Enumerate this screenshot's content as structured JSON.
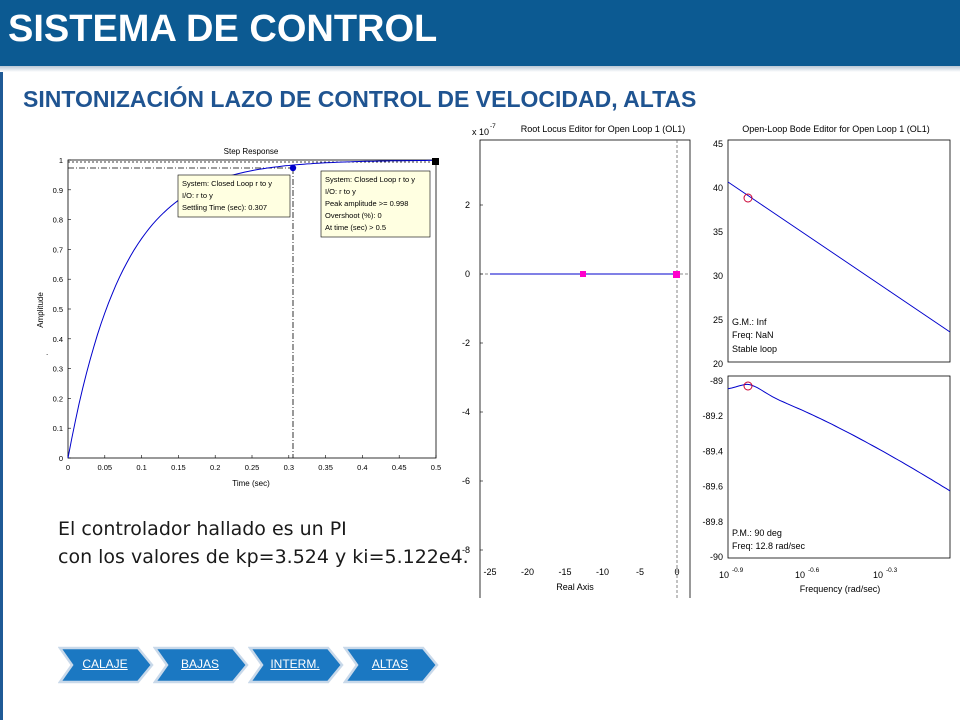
{
  "header": {
    "title": "SISTEMA DE CONTROL"
  },
  "subtitle": "SINTONIZACIÓN LAZO DE CONTROL DE VELOCIDAD, ALTAS",
  "step_plot": {
    "title": "Step Response",
    "xlabel": "Time (sec)",
    "ylabel": "Amplitude",
    "xticks": [
      "0",
      "0.05",
      "0.1",
      "0.15",
      "0.2",
      "0.25",
      "0.3",
      "0.35",
      "0.4",
      "0.45",
      "0.5"
    ],
    "yticks": [
      "0",
      "0.1",
      "0.2",
      "0.3",
      "0.4",
      "0.5",
      "0.6",
      "0.7",
      "0.8",
      "0.9",
      "1"
    ],
    "dot_mark": ".",
    "tip1": [
      "System: Closed Loop r to y",
      "I/O: r to y",
      "Settling Time (sec): 0.307"
    ],
    "tip2": [
      "System: Closed Loop r to y",
      "I/O: r to y",
      "Peak amplitude >= 0.998",
      "Overshoot (%): 0",
      "At time (sec) > 0.5"
    ]
  },
  "root_locus": {
    "title": "Root Locus Editor for Open Loop 1 (OL1)",
    "scale": "x 10",
    "scale_exp": "-7",
    "xlabel": "Real Axis",
    "xticks": [
      "-25",
      "-20",
      "-15",
      "-10",
      "-5",
      "0"
    ],
    "yticks": [
      "2",
      "0",
      "-2",
      "-4",
      "-6",
      "-8"
    ]
  },
  "bode": {
    "title": "Open-Loop Bode Editor for Open Loop 1 (OL1)",
    "mag_yticks": [
      "45",
      "40",
      "35",
      "30",
      "25",
      "20"
    ],
    "phase_yticks": [
      "-89",
      "-89.2",
      "-89.4",
      "-89.6",
      "-89.8",
      "-90"
    ],
    "mag_info": [
      "G.M.: Inf",
      "Freq: NaN",
      "Stable loop"
    ],
    "phase_info": [
      "P.M.: 90 deg",
      "Freq: 12.8 rad/sec"
    ],
    "xticks": [
      {
        "base": "10",
        "exp": "-0.9"
      },
      {
        "base": "10",
        "exp": "-0.6"
      },
      {
        "base": "10",
        "exp": "-0.3"
      }
    ],
    "xlabel": "Frequency (rad/sec)"
  },
  "description": {
    "line1": "El controlador hallado es un PI",
    "line2": "con los valores de kp=3.524 y ki=5.122e4."
  },
  "nav": {
    "items": [
      "CALAJE",
      "BAJAS",
      "INTERM.",
      "ALTAS"
    ]
  },
  "colors": {
    "header_bg": "#0c5a92",
    "subtitle": "#1f5491",
    "plot_line": "#0000cc",
    "marker": "#ff00cc",
    "nav_fill": "#1b78c2"
  }
}
